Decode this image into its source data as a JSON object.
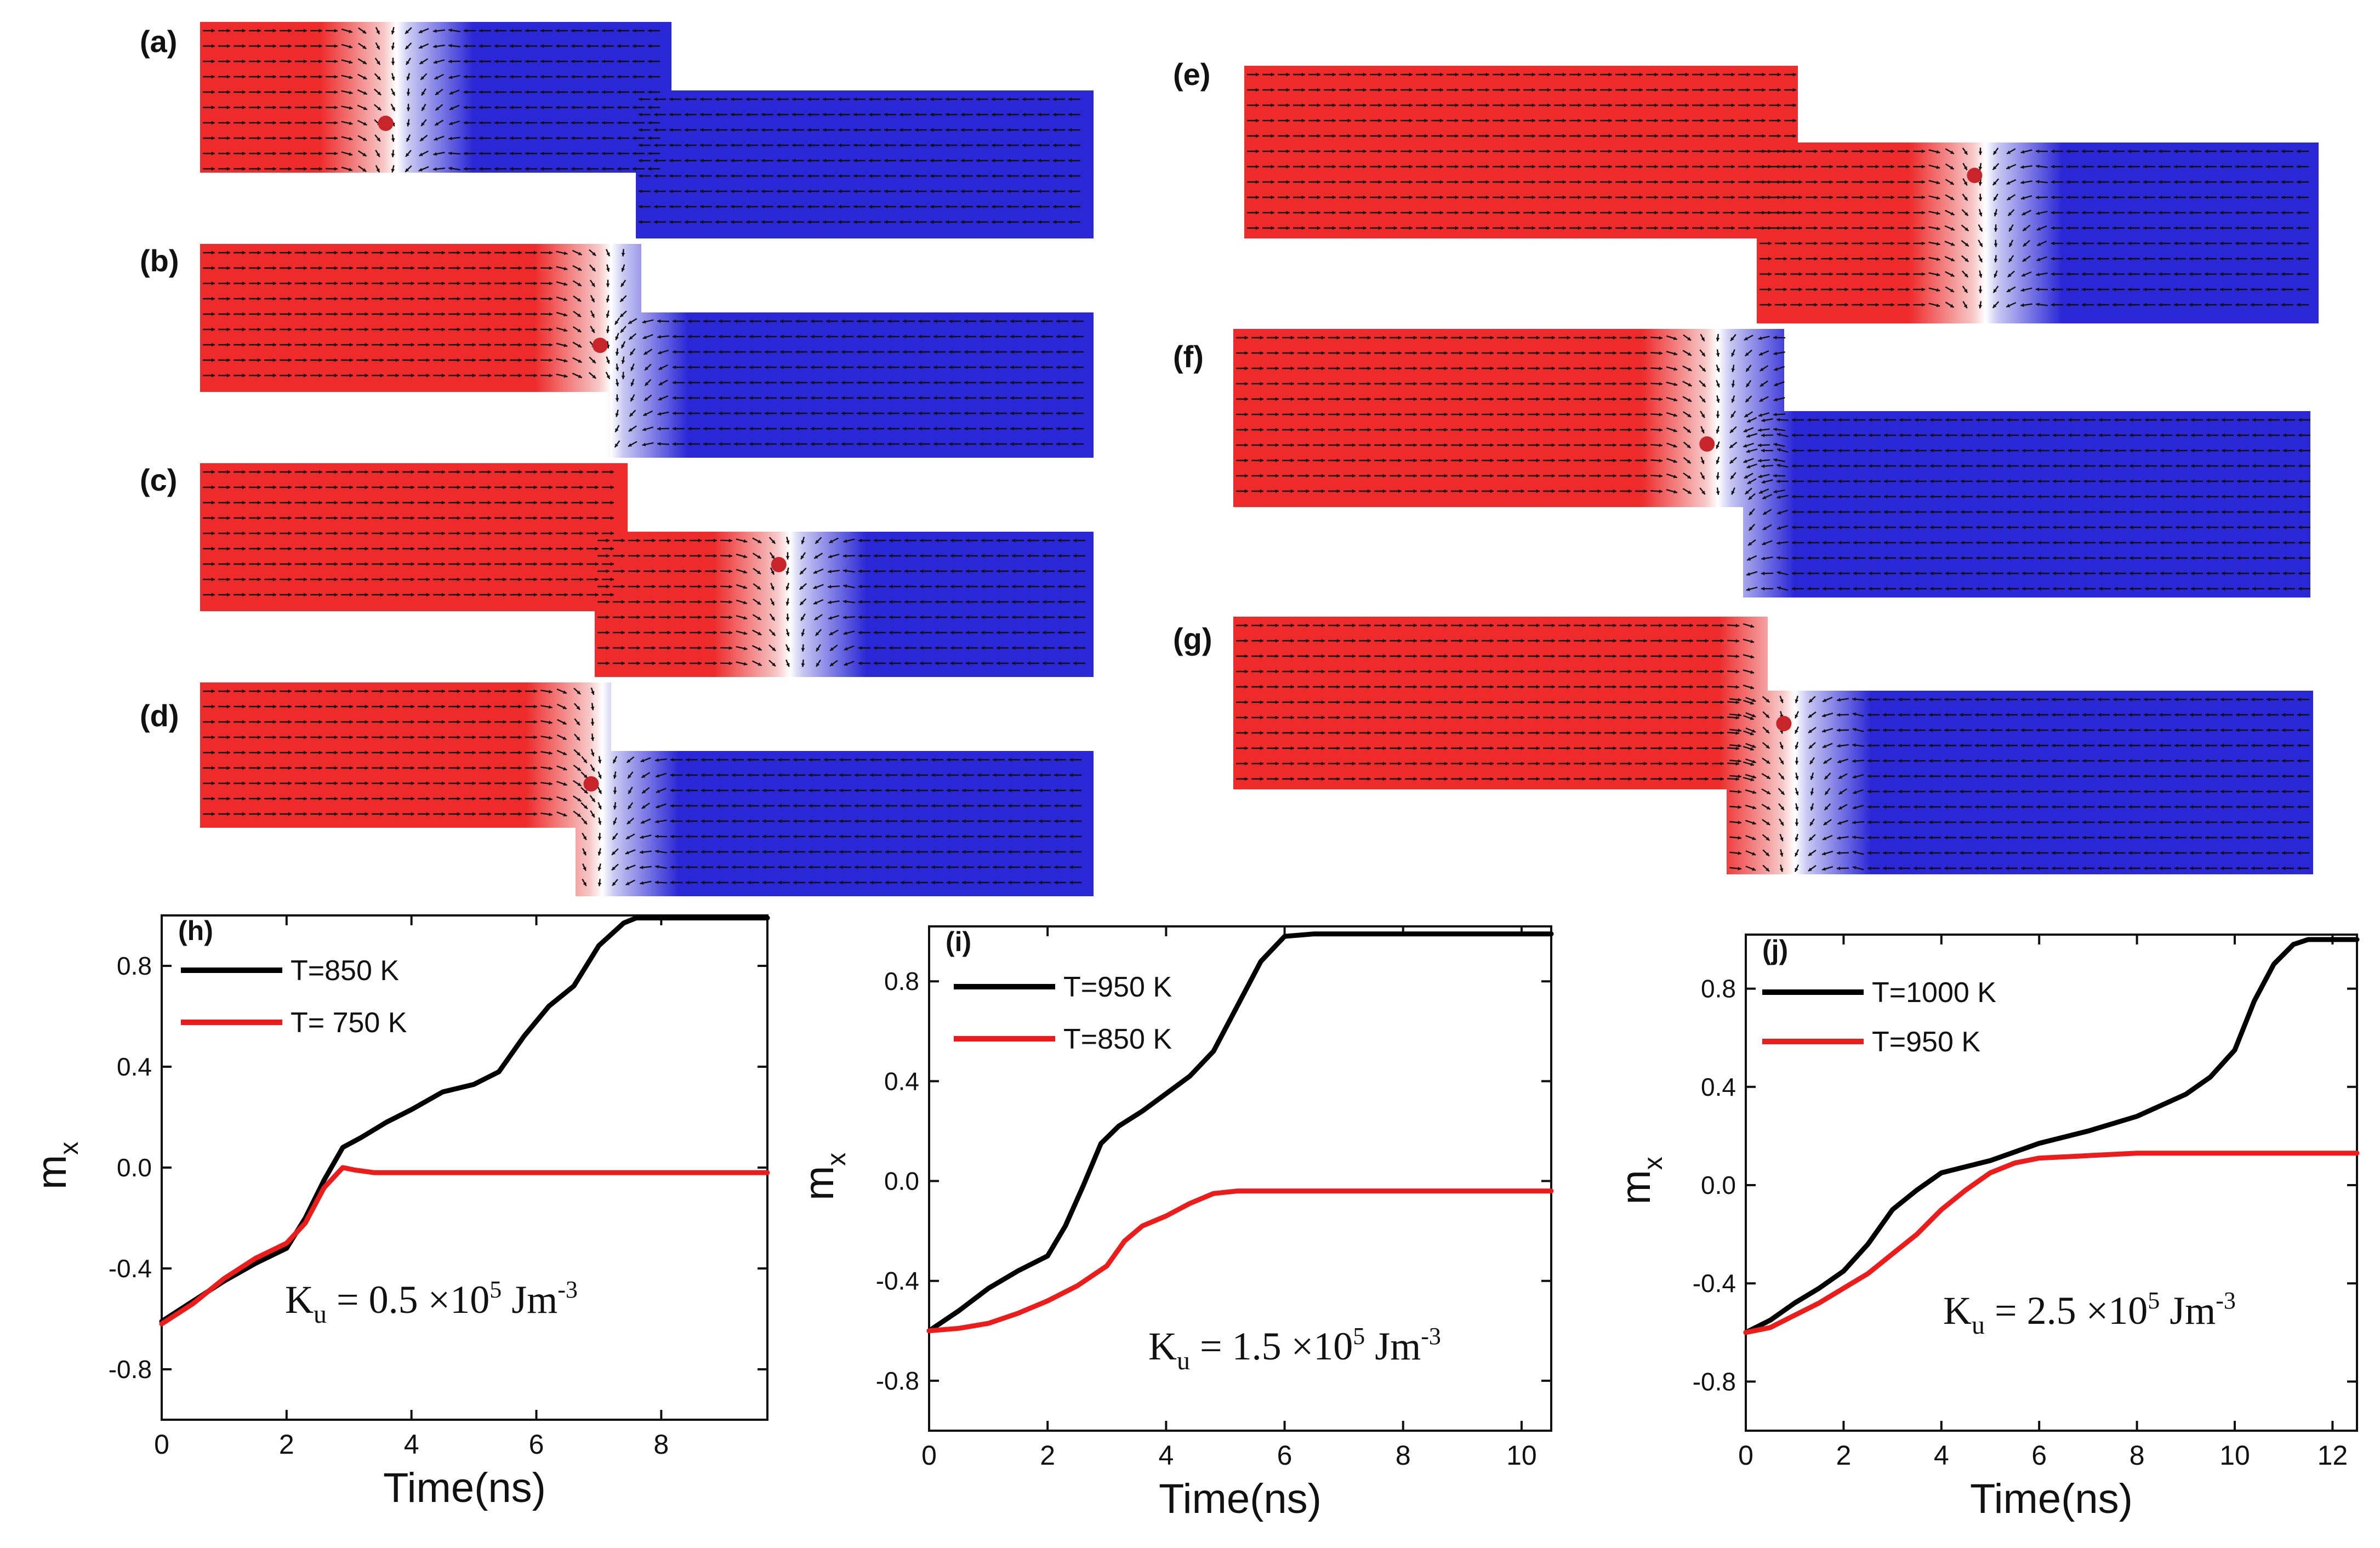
{
  "colors": {
    "red": "#ee2a2a",
    "blue": "#2a27d6",
    "white": "#ffffff",
    "dot": "#c8252a",
    "arrow": "#111111"
  },
  "snapshots": [
    {
      "label": "(a)",
      "wall": 0.22,
      "progress": "early"
    },
    {
      "label": "(b)",
      "wall": 0.46,
      "progress": "mid"
    },
    {
      "label": "(c)",
      "wall": 0.66,
      "progress": "late"
    },
    {
      "label": "(d)",
      "wall": 0.45,
      "progress": "mid"
    },
    {
      "label": "(e)",
      "wall": 0.69,
      "progress": "late"
    },
    {
      "label": "(f)",
      "wall": 0.45,
      "progress": "mid"
    },
    {
      "label": "(g)",
      "wall": 0.52,
      "progress": "mid"
    }
  ],
  "chart_data": [
    {
      "type": "line",
      "panel": "(h)",
      "xlabel": "Time(ns)",
      "ylabel": "m",
      "ylabel_sub": "x",
      "xlim": [
        0,
        9.7
      ],
      "ylim": [
        -1.0,
        1.0
      ],
      "xticks": [
        "0",
        "2",
        "4",
        "6",
        "8"
      ],
      "yticks": [
        "-0.8",
        "-0.4",
        "0.0",
        "0.4",
        "0.8"
      ],
      "annotation": {
        "K": "K",
        "sub": "u",
        "eq": " = 0.5 ×10",
        "exp": "5",
        "unit": " Jm",
        "unitexp": "-3"
      },
      "series": [
        {
          "name": "T=850 K",
          "color": "#000000",
          "x": [
            0,
            0.5,
            1,
            1.5,
            2,
            2.3,
            2.6,
            2.9,
            3.2,
            3.6,
            4.0,
            4.5,
            5.0,
            5.4,
            5.8,
            6.2,
            6.6,
            7.0,
            7.4,
            7.6,
            8.0,
            9.7
          ],
          "y": [
            -0.61,
            -0.53,
            -0.45,
            -0.38,
            -0.32,
            -0.2,
            -0.05,
            0.08,
            0.12,
            0.18,
            0.23,
            0.3,
            0.33,
            0.38,
            0.52,
            0.64,
            0.72,
            0.88,
            0.97,
            0.99,
            0.99,
            0.99
          ]
        },
        {
          "name": "T= 750 K",
          "color": "#ee1b1b",
          "x": [
            0,
            0.5,
            1,
            1.5,
            2,
            2.3,
            2.6,
            2.9,
            3.1,
            3.4,
            4,
            6,
            8,
            9.7
          ],
          "y": [
            -0.62,
            -0.54,
            -0.44,
            -0.36,
            -0.3,
            -0.22,
            -0.08,
            0.0,
            -0.01,
            -0.02,
            -0.02,
            -0.02,
            -0.02,
            -0.02
          ]
        }
      ]
    },
    {
      "type": "line",
      "panel": "(i)",
      "xlabel": "Time(ns)",
      "ylabel": "m",
      "ylabel_sub": "x",
      "xlim": [
        0,
        10.5
      ],
      "ylim": [
        -1.0,
        1.02
      ],
      "xticks": [
        "0",
        "2",
        "4",
        "6",
        "8",
        "10"
      ],
      "yticks": [
        "-0.8",
        "-0.4",
        "0.0",
        "0.4",
        "0.8"
      ],
      "annotation": {
        "K": "K",
        "sub": "u",
        "eq": " = 1.5 ×10",
        "exp": "5",
        "unit": " Jm",
        "unitexp": "-3"
      },
      "series": [
        {
          "name": "T=950 K",
          "color": "#000000",
          "x": [
            0,
            0.5,
            1,
            1.5,
            2,
            2.3,
            2.6,
            2.9,
            3.2,
            3.6,
            4.0,
            4.4,
            4.8,
            5.2,
            5.6,
            6.0,
            6.5,
            8,
            10.5
          ],
          "y": [
            -0.6,
            -0.52,
            -0.43,
            -0.36,
            -0.3,
            -0.18,
            -0.02,
            0.15,
            0.22,
            0.28,
            0.35,
            0.42,
            0.52,
            0.7,
            0.88,
            0.98,
            0.99,
            0.99,
            0.99
          ]
        },
        {
          "name": "T=850 K",
          "color": "#ee1b1b",
          "x": [
            0,
            0.5,
            1,
            1.5,
            2,
            2.5,
            3.0,
            3.3,
            3.6,
            4.0,
            4.4,
            4.8,
            5.2,
            6,
            8,
            10.5
          ],
          "y": [
            -0.6,
            -0.59,
            -0.57,
            -0.53,
            -0.48,
            -0.42,
            -0.34,
            -0.24,
            -0.18,
            -0.14,
            -0.09,
            -0.05,
            -0.04,
            -0.04,
            -0.04,
            -0.04
          ]
        }
      ]
    },
    {
      "type": "line",
      "panel": "(j)",
      "xlabel": "Time(ns)",
      "ylabel": "m",
      "ylabel_sub": "x",
      "xlim": [
        0,
        12.5
      ],
      "ylim": [
        -1.0,
        1.02
      ],
      "xticks": [
        "0",
        "2",
        "4",
        "6",
        "8",
        "10",
        "12"
      ],
      "yticks": [
        "-0.8",
        "-0.4",
        "0.0",
        "0.4",
        "0.8"
      ],
      "annotation": {
        "K": "K",
        "sub": "u",
        "eq": " = 2.5 ×10",
        "exp": "5",
        "unit": " Jm",
        "unitexp": "-3"
      },
      "series": [
        {
          "name": "T=1000 K",
          "color": "#000000",
          "x": [
            0,
            0.5,
            1,
            1.5,
            2,
            2.5,
            3.0,
            3.5,
            4.0,
            5,
            6,
            7,
            8,
            9,
            9.5,
            10,
            10.4,
            10.8,
            11.2,
            11.5,
            12.5
          ],
          "y": [
            -0.6,
            -0.55,
            -0.48,
            -0.42,
            -0.35,
            -0.24,
            -0.1,
            -0.02,
            0.05,
            0.1,
            0.17,
            0.22,
            0.28,
            0.37,
            0.44,
            0.55,
            0.75,
            0.9,
            0.98,
            1.0,
            1.0
          ]
        },
        {
          "name": "T=950 K",
          "color": "#ee1b1b",
          "x": [
            0,
            0.5,
            1,
            1.5,
            2,
            2.5,
            3.0,
            3.5,
            4.0,
            4.5,
            5.0,
            5.5,
            6.0,
            7,
            8,
            10,
            12.5
          ],
          "y": [
            -0.6,
            -0.58,
            -0.53,
            -0.48,
            -0.42,
            -0.36,
            -0.28,
            -0.2,
            -0.1,
            -0.02,
            0.05,
            0.09,
            0.11,
            0.12,
            0.13,
            0.13,
            0.13
          ]
        }
      ]
    }
  ]
}
